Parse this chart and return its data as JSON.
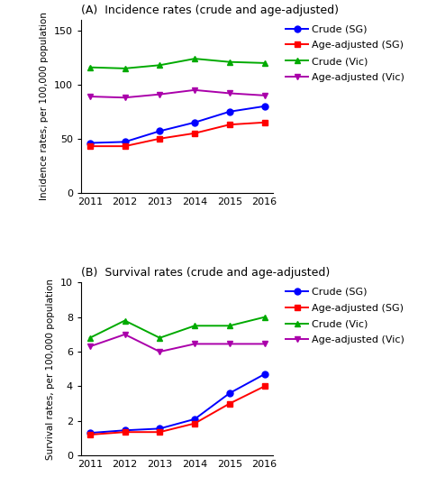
{
  "years": [
    2011,
    2012,
    2013,
    2014,
    2015,
    2016
  ],
  "incidence_crude_sg": [
    46,
    47,
    57,
    65,
    75,
    80
  ],
  "incidence_ageadj_sg": [
    43,
    43,
    50,
    55,
    63,
    65
  ],
  "incidence_crude_vic": [
    116,
    115,
    118,
    124,
    121,
    120
  ],
  "incidence_ageadj_vic": [
    89,
    88,
    91,
    95,
    92,
    90
  ],
  "survival_crude_sg": [
    1.3,
    1.45,
    1.55,
    2.1,
    3.6,
    4.7
  ],
  "survival_ageadj_sg": [
    1.2,
    1.35,
    1.35,
    1.85,
    3.0,
    4.0
  ],
  "survival_crude_vic": [
    6.8,
    7.8,
    6.8,
    7.5,
    7.5,
    8.0
  ],
  "survival_ageadj_vic": [
    6.3,
    7.0,
    6.0,
    6.45,
    6.45,
    6.45
  ],
  "color_crude_sg": "#0000FF",
  "color_ageadj_sg": "#FF0000",
  "color_crude_vic": "#00AA00",
  "color_ageadj_vic": "#AA00AA",
  "title_A": "(A)  Incidence rates (crude and age-adjusted)",
  "title_B": "(B)  Survival rates (crude and age-adjusted)",
  "ylabel_A": "Incidence rates, per 100,000 population",
  "ylabel_B": "Survival rates, per 100,000 population",
  "ylim_A": [
    0,
    160
  ],
  "yticks_A": [
    0,
    50,
    100,
    150
  ],
  "ylim_B": [
    0,
    10
  ],
  "yticks_B": [
    0,
    2,
    4,
    6,
    8,
    10
  ],
  "legend_labels": [
    "Crude (SG)",
    "Age-adjusted (SG)",
    "Crude (Vic)",
    "Age-adjusted (Vic)"
  ],
  "marker_crude_sg": "o",
  "marker_ageadj_sg": "s",
  "marker_crude_vic": "^",
  "marker_ageadj_vic": "v",
  "markersize": 5,
  "linewidth": 1.4,
  "fontsize_title": 9,
  "fontsize_label": 7.5,
  "fontsize_tick": 8,
  "fontsize_legend": 8
}
